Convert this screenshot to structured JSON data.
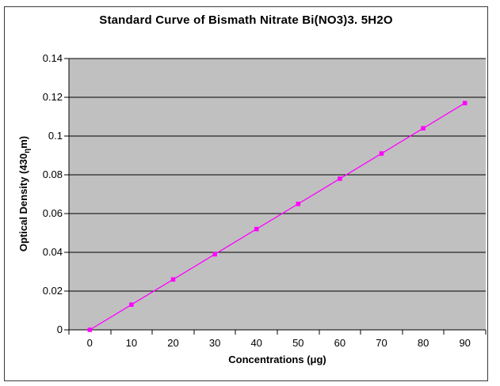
{
  "chart_data": {
    "type": "line",
    "title": "Standard Curve of Bismath Nitrate Bi(NO3)3. 5H2O",
    "xlabel": "Concentrations (μg)",
    "ylabel": "Optical Density (430ηm)",
    "ylabel_parts": {
      "pre": "Optical Density (430",
      "sub": "η",
      "post": "m)"
    },
    "categories": [
      "0",
      "10",
      "20",
      "30",
      "40",
      "50",
      "60",
      "70",
      "80",
      "90"
    ],
    "values": [
      0,
      0.013,
      0.026,
      0.039,
      0.052,
      0.065,
      0.078,
      0.091,
      0.104,
      0.117
    ],
    "ylim": [
      0,
      0.14
    ],
    "y_ticks": [
      "0",
      "0.02",
      "0.04",
      "0.06",
      "0.08",
      "0.1",
      "0.12",
      "0.14"
    ],
    "grid": "horizontal",
    "legend": "none",
    "marker": "square",
    "colors": {
      "series": "#FF00FF",
      "plot_bg": "#C0C0C0",
      "gridline": "#000000",
      "axis": "#000000",
      "text": "#000000",
      "frame_border": "#3A3A3A",
      "page_bg": "#FFFFFF"
    }
  }
}
